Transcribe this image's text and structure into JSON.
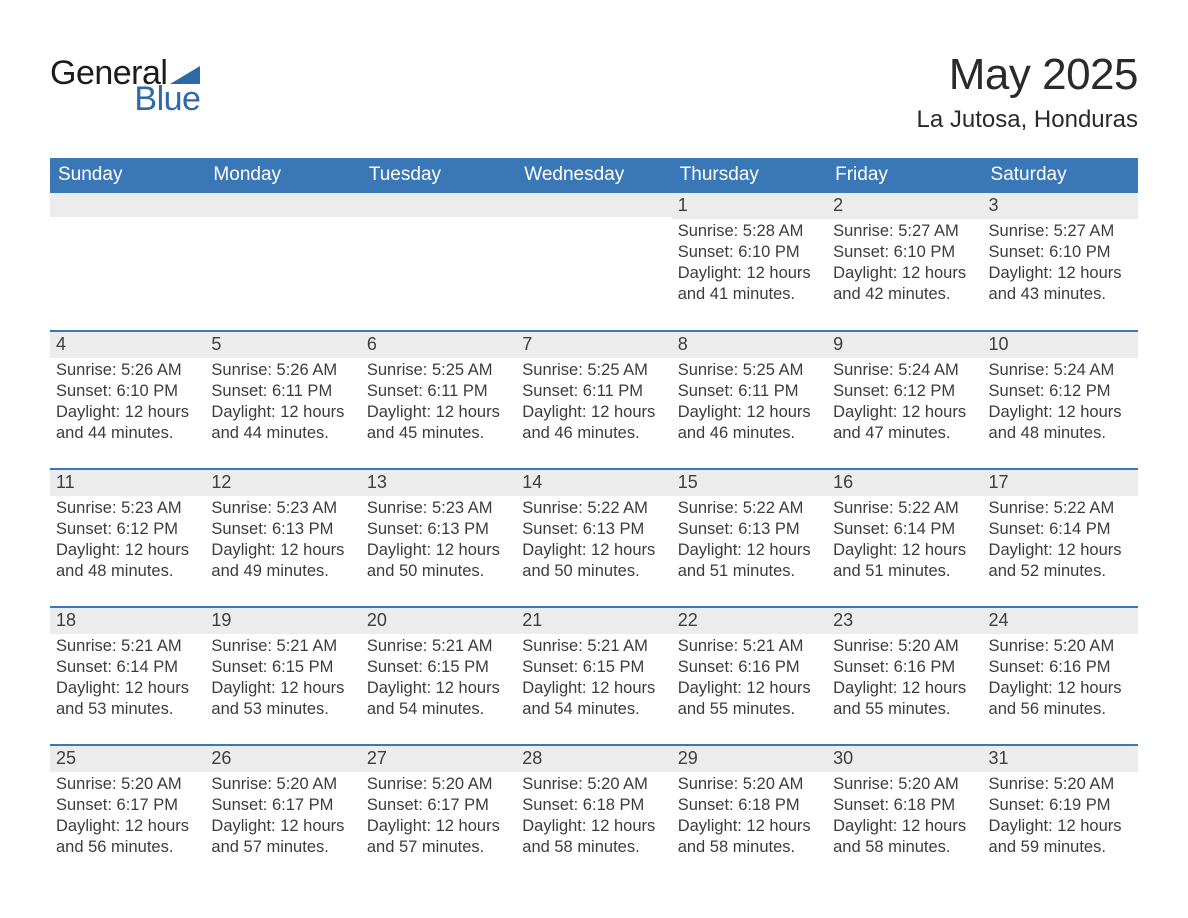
{
  "logo": {
    "word1": "General",
    "word2": "Blue"
  },
  "title": "May 2025",
  "location": "La Jutosa, Honduras",
  "colors": {
    "header_blue": "#3a77b7",
    "daynum_bg": "#ececec",
    "text": "#333333",
    "logo_blue": "#2f6aa8",
    "background": "#ffffff"
  },
  "dayNames": [
    "Sunday",
    "Monday",
    "Tuesday",
    "Wednesday",
    "Thursday",
    "Friday",
    "Saturday"
  ],
  "labels": {
    "sunrise": "Sunrise",
    "sunset": "Sunset",
    "daylight": "Daylight"
  },
  "weeks": [
    [
      null,
      null,
      null,
      null,
      {
        "day": "1",
        "sunrise": "5:28 AM",
        "sunset": "6:10 PM",
        "daylight": "12 hours and 41 minutes."
      },
      {
        "day": "2",
        "sunrise": "5:27 AM",
        "sunset": "6:10 PM",
        "daylight": "12 hours and 42 minutes."
      },
      {
        "day": "3",
        "sunrise": "5:27 AM",
        "sunset": "6:10 PM",
        "daylight": "12 hours and 43 minutes."
      }
    ],
    [
      {
        "day": "4",
        "sunrise": "5:26 AM",
        "sunset": "6:10 PM",
        "daylight": "12 hours and 44 minutes."
      },
      {
        "day": "5",
        "sunrise": "5:26 AM",
        "sunset": "6:11 PM",
        "daylight": "12 hours and 44 minutes."
      },
      {
        "day": "6",
        "sunrise": "5:25 AM",
        "sunset": "6:11 PM",
        "daylight": "12 hours and 45 minutes."
      },
      {
        "day": "7",
        "sunrise": "5:25 AM",
        "sunset": "6:11 PM",
        "daylight": "12 hours and 46 minutes."
      },
      {
        "day": "8",
        "sunrise": "5:25 AM",
        "sunset": "6:11 PM",
        "daylight": "12 hours and 46 minutes."
      },
      {
        "day": "9",
        "sunrise": "5:24 AM",
        "sunset": "6:12 PM",
        "daylight": "12 hours and 47 minutes."
      },
      {
        "day": "10",
        "sunrise": "5:24 AM",
        "sunset": "6:12 PM",
        "daylight": "12 hours and 48 minutes."
      }
    ],
    [
      {
        "day": "11",
        "sunrise": "5:23 AM",
        "sunset": "6:12 PM",
        "daylight": "12 hours and 48 minutes."
      },
      {
        "day": "12",
        "sunrise": "5:23 AM",
        "sunset": "6:13 PM",
        "daylight": "12 hours and 49 minutes."
      },
      {
        "day": "13",
        "sunrise": "5:23 AM",
        "sunset": "6:13 PM",
        "daylight": "12 hours and 50 minutes."
      },
      {
        "day": "14",
        "sunrise": "5:22 AM",
        "sunset": "6:13 PM",
        "daylight": "12 hours and 50 minutes."
      },
      {
        "day": "15",
        "sunrise": "5:22 AM",
        "sunset": "6:13 PM",
        "daylight": "12 hours and 51 minutes."
      },
      {
        "day": "16",
        "sunrise": "5:22 AM",
        "sunset": "6:14 PM",
        "daylight": "12 hours and 51 minutes."
      },
      {
        "day": "17",
        "sunrise": "5:22 AM",
        "sunset": "6:14 PM",
        "daylight": "12 hours and 52 minutes."
      }
    ],
    [
      {
        "day": "18",
        "sunrise": "5:21 AM",
        "sunset": "6:14 PM",
        "daylight": "12 hours and 53 minutes."
      },
      {
        "day": "19",
        "sunrise": "5:21 AM",
        "sunset": "6:15 PM",
        "daylight": "12 hours and 53 minutes."
      },
      {
        "day": "20",
        "sunrise": "5:21 AM",
        "sunset": "6:15 PM",
        "daylight": "12 hours and 54 minutes."
      },
      {
        "day": "21",
        "sunrise": "5:21 AM",
        "sunset": "6:15 PM",
        "daylight": "12 hours and 54 minutes."
      },
      {
        "day": "22",
        "sunrise": "5:21 AM",
        "sunset": "6:16 PM",
        "daylight": "12 hours and 55 minutes."
      },
      {
        "day": "23",
        "sunrise": "5:20 AM",
        "sunset": "6:16 PM",
        "daylight": "12 hours and 55 minutes."
      },
      {
        "day": "24",
        "sunrise": "5:20 AM",
        "sunset": "6:16 PM",
        "daylight": "12 hours and 56 minutes."
      }
    ],
    [
      {
        "day": "25",
        "sunrise": "5:20 AM",
        "sunset": "6:17 PM",
        "daylight": "12 hours and 56 minutes."
      },
      {
        "day": "26",
        "sunrise": "5:20 AM",
        "sunset": "6:17 PM",
        "daylight": "12 hours and 57 minutes."
      },
      {
        "day": "27",
        "sunrise": "5:20 AM",
        "sunset": "6:17 PM",
        "daylight": "12 hours and 57 minutes."
      },
      {
        "day": "28",
        "sunrise": "5:20 AM",
        "sunset": "6:18 PM",
        "daylight": "12 hours and 58 minutes."
      },
      {
        "day": "29",
        "sunrise": "5:20 AM",
        "sunset": "6:18 PM",
        "daylight": "12 hours and 58 minutes."
      },
      {
        "day": "30",
        "sunrise": "5:20 AM",
        "sunset": "6:18 PM",
        "daylight": "12 hours and 58 minutes."
      },
      {
        "day": "31",
        "sunrise": "5:20 AM",
        "sunset": "6:19 PM",
        "daylight": "12 hours and 59 minutes."
      }
    ]
  ]
}
